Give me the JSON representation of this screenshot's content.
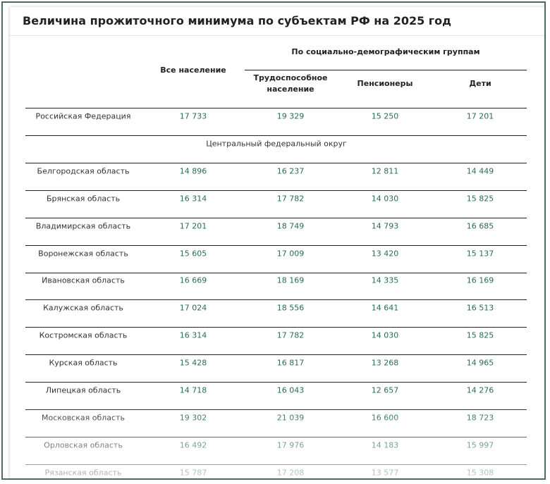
{
  "header": {
    "title": "Величина прожиточного минимума по субъектам РФ на 2025 год"
  },
  "table": {
    "columns": {
      "all": "Все население",
      "group": "По социально-демографическим группам",
      "groups": [
        "Трудоспособное население",
        "Пенсионеры",
        "Дети"
      ]
    },
    "rows": [
      [
        "Российская Федерация",
        "17 733",
        "19 329",
        "15 250",
        "17 201"
      ],
      [
        "Центральный федеральный округ"
      ],
      [
        "Белгородская область",
        "14 896",
        "16 237",
        "12 811",
        "14 449"
      ],
      [
        "Брянская область",
        "16 314",
        "17 782",
        "14 030",
        "15 825"
      ],
      [
        "Владимирская область",
        "17 201",
        "18 749",
        "14 793",
        "16 685"
      ],
      [
        "Воронежская область",
        "15 605",
        "17 009",
        "13 420",
        "15 137"
      ],
      [
        "Ивановская область",
        "16 669",
        "18 169",
        "14 335",
        "16 169"
      ],
      [
        "Калужская область",
        "17 024",
        "18 556",
        "14 641",
        "16 513"
      ],
      [
        "Костромская область",
        "16 314",
        "17 782",
        "14 030",
        "15 825"
      ],
      [
        "Курская область",
        "15 428",
        "16 817",
        "13 268",
        "14 965"
      ],
      [
        "Липецкая область",
        "14 718",
        "16 043",
        "12 657",
        "14 276"
      ],
      [
        "Московская область",
        "19 302",
        "21 039",
        "16 600",
        "18 723"
      ],
      [
        "Орловская область",
        "16 492",
        "17 976",
        "14 183",
        "15 997"
      ],
      [
        "Рязанская область",
        "15 787",
        "17 208",
        "13 577",
        "15 308"
      ]
    ]
  }
}
